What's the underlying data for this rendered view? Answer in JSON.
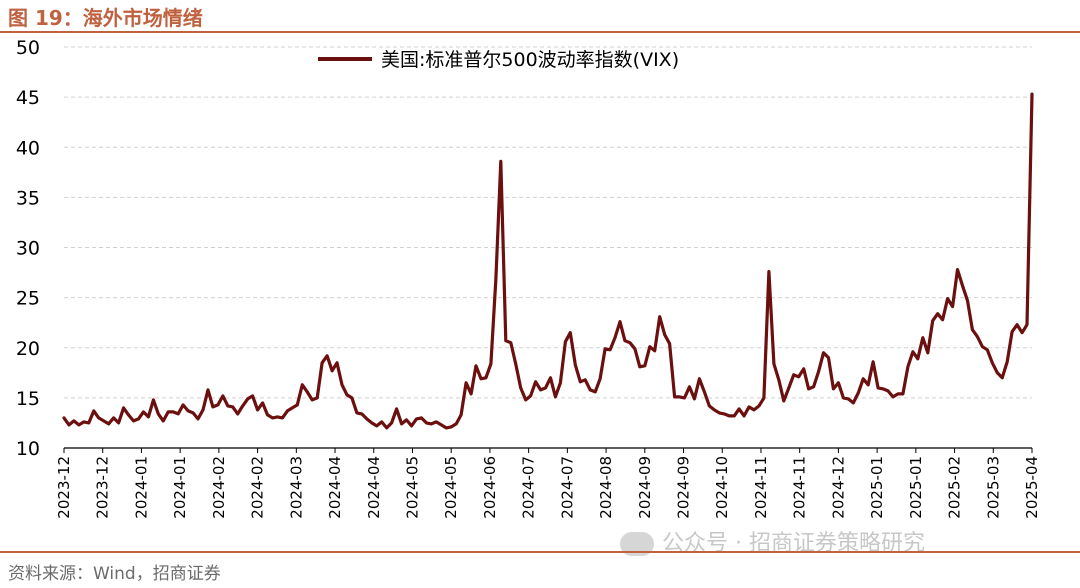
{
  "figure": {
    "title": "图 19：海外市场情绪",
    "source": "资料来源：Wind，招商证券",
    "watermark": "公众号 · 招商证券策略研究"
  },
  "colors": {
    "accent": "#c0613f",
    "series": "#6b0f0f",
    "grid": "#d0d0d0"
  },
  "chart_data": {
    "type": "line",
    "title": "",
    "xlabel": "",
    "ylabel": "",
    "ylim": [
      10,
      50
    ],
    "yticks": [
      10,
      15,
      20,
      25,
      30,
      35,
      40,
      45,
      50
    ],
    "grid": "horizontal",
    "legend_position": "top-center",
    "xticks": [
      "2023-12",
      "2023-12",
      "2024-01",
      "2024-01",
      "2024-02",
      "2024-02",
      "2024-03",
      "2024-04",
      "2024-04",
      "2024-05",
      "2024-05",
      "2024-06",
      "2024-07",
      "2024-07",
      "2024-08",
      "2024-09",
      "2024-09",
      "2024-10",
      "2024-11",
      "2024-11",
      "2024-12",
      "2025-01",
      "2025-01",
      "2025-02",
      "2025-03",
      "2025-04"
    ],
    "series": [
      {
        "name": "美国:标准普尔500波动率指数(VIX)",
        "values": [
          13.0,
          12.3,
          12.7,
          12.3,
          12.6,
          12.5,
          13.7,
          13.0,
          12.7,
          12.4,
          13.0,
          12.5,
          14.0,
          13.3,
          12.7,
          12.9,
          13.6,
          13.1,
          14.8,
          13.4,
          12.7,
          13.6,
          13.6,
          13.4,
          14.3,
          13.7,
          13.5,
          12.9,
          13.8,
          15.8,
          14.1,
          14.3,
          15.2,
          14.2,
          14.1,
          13.4,
          14.2,
          14.9,
          15.2,
          13.8,
          14.5,
          13.3,
          13.0,
          13.1,
          13.0,
          13.7,
          14.0,
          14.3,
          16.3,
          15.6,
          14.8,
          15.0,
          18.5,
          19.2,
          17.7,
          18.5,
          16.3,
          15.3,
          15.0,
          13.5,
          13.4,
          12.9,
          12.5,
          12.2,
          12.6,
          12.0,
          12.5,
          13.9,
          12.4,
          12.8,
          12.2,
          12.9,
          13.0,
          12.5,
          12.4,
          12.6,
          12.3,
          12.0,
          12.1,
          12.4,
          13.3,
          16.5,
          15.4,
          18.2,
          16.9,
          17.0,
          18.4,
          26.9,
          38.6,
          20.7,
          20.5,
          18.4,
          16.0,
          14.8,
          15.2,
          16.6,
          15.8,
          16.0,
          17.0,
          15.1,
          16.5,
          20.6,
          21.5,
          18.3,
          16.6,
          16.8,
          15.8,
          15.6,
          16.9,
          19.9,
          19.8,
          21.0,
          22.6,
          20.7,
          20.5,
          19.9,
          18.1,
          18.2,
          20.1,
          19.7,
          23.1,
          21.3,
          20.4,
          15.1,
          15.1,
          15.0,
          16.1,
          14.9,
          16.9,
          15.6,
          14.2,
          13.8,
          13.5,
          13.4,
          13.2,
          13.2,
          13.9,
          13.2,
          14.1,
          13.8,
          14.2,
          15.0,
          27.6,
          18.4,
          16.8,
          14.7,
          16.0,
          17.3,
          17.1,
          17.9,
          15.9,
          16.1,
          17.6,
          19.5,
          19.0,
          15.9,
          16.5,
          15.0,
          14.9,
          14.5,
          15.5,
          16.9,
          16.3,
          18.6,
          16.0,
          15.9,
          15.7,
          15.1,
          15.4,
          15.4,
          18.1,
          19.6,
          18.9,
          21.0,
          19.5,
          22.7,
          23.4,
          22.8,
          24.9,
          24.1,
          27.8,
          26.2,
          24.7,
          21.8,
          21.1,
          20.1,
          19.8,
          18.5,
          17.5,
          17.0,
          18.6,
          21.6,
          22.3,
          21.5,
          22.3,
          45.3
        ]
      }
    ]
  }
}
